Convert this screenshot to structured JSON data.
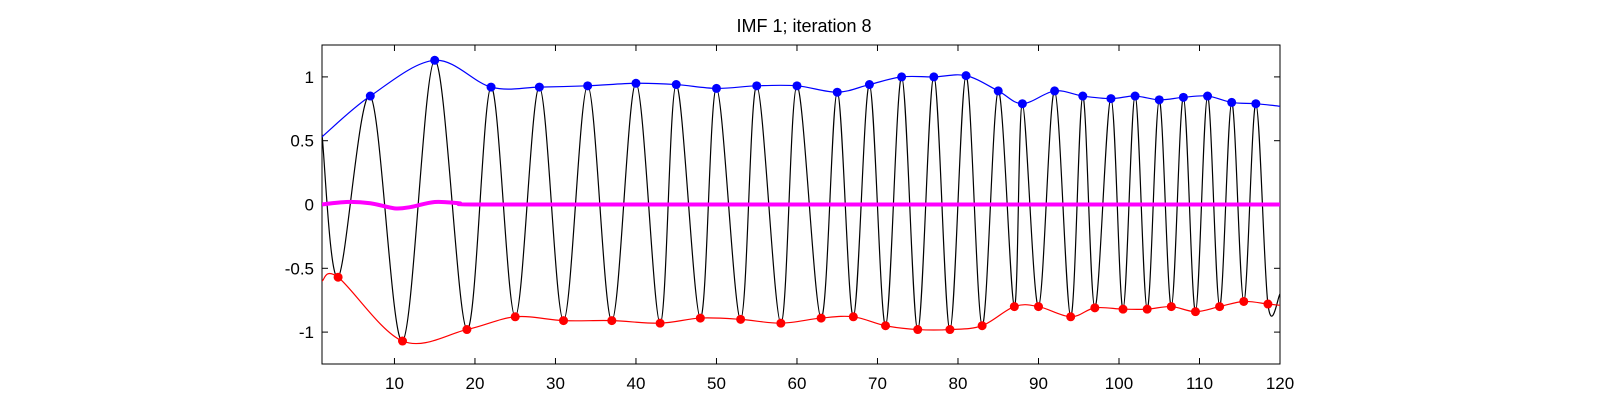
{
  "chart_data": {
    "type": "line",
    "title": "IMF 1;   iteration 8",
    "xlabel": "",
    "ylabel": "",
    "xlim": [
      1,
      120
    ],
    "ylim": [
      -1.25,
      1.25
    ],
    "xticks": [
      10,
      20,
      30,
      40,
      50,
      60,
      70,
      80,
      90,
      100,
      110,
      120
    ],
    "yticks": [
      1,
      0.5,
      0,
      -0.5,
      -1
    ],
    "ytick_labels": [
      "1",
      "0.5",
      "0",
      "-0.5",
      "-1"
    ],
    "grid": false,
    "series": [
      {
        "role": "signal",
        "color": "#000000",
        "x": [
          1,
          3,
          7,
          11,
          15,
          19,
          22,
          25,
          28,
          31,
          34,
          37,
          40,
          43,
          45,
          48,
          50,
          53,
          55,
          58,
          60,
          63,
          65,
          67,
          69,
          71,
          73,
          75,
          77,
          79,
          81,
          83,
          85,
          87,
          88,
          90,
          92,
          94,
          95.5,
          97,
          99,
          100.5,
          102,
          103.5,
          105,
          106.5,
          108,
          109.5,
          111,
          112.5,
          114,
          115.5,
          117,
          118.5,
          120
        ],
        "y": [
          0.55,
          -0.57,
          0.85,
          -1.07,
          1.13,
          -0.98,
          0.92,
          -0.88,
          0.92,
          -0.91,
          0.93,
          -0.91,
          0.95,
          -0.93,
          0.94,
          -0.89,
          0.91,
          -0.9,
          0.93,
          -0.93,
          0.93,
          -0.89,
          0.88,
          -0.88,
          0.94,
          -0.95,
          1.0,
          -0.98,
          1.0,
          -0.98,
          1.01,
          -0.95,
          0.89,
          -0.8,
          0.79,
          -0.8,
          0.89,
          -0.88,
          0.85,
          -0.81,
          0.83,
          -0.82,
          0.85,
          -0.82,
          0.82,
          -0.8,
          0.84,
          -0.84,
          0.85,
          -0.8,
          0.8,
          -0.76,
          0.79,
          -0.78,
          -0.7
        ]
      },
      {
        "role": "upper envelope",
        "color": "#0000ff",
        "x": [
          1,
          7,
          15,
          22,
          28,
          34,
          40,
          45,
          50,
          55,
          60,
          65,
          69,
          73,
          77,
          81,
          85,
          88,
          92,
          95.5,
          99,
          102,
          105,
          108,
          111,
          114,
          117,
          120
        ],
        "y": [
          0.53,
          0.85,
          1.13,
          0.92,
          0.92,
          0.93,
          0.95,
          0.94,
          0.91,
          0.93,
          0.93,
          0.88,
          0.94,
          1.0,
          1.0,
          1.01,
          0.89,
          0.79,
          0.89,
          0.85,
          0.83,
          0.85,
          0.82,
          0.84,
          0.85,
          0.8,
          0.79,
          0.77
        ]
      },
      {
        "role": "lower envelope",
        "color": "#ff0000",
        "x": [
          1,
          3,
          11,
          19,
          25,
          31,
          37,
          43,
          48,
          53,
          58,
          63,
          67,
          71,
          75,
          79,
          83,
          87,
          90,
          94,
          97,
          100.5,
          103.5,
          106.5,
          109.5,
          112.5,
          115.5,
          118.5,
          120
        ],
        "y": [
          -0.6,
          -0.57,
          -1.07,
          -0.98,
          -0.88,
          -0.91,
          -0.91,
          -0.93,
          -0.89,
          -0.9,
          -0.93,
          -0.89,
          -0.88,
          -0.95,
          -0.98,
          -0.98,
          -0.95,
          -0.8,
          -0.8,
          -0.88,
          -0.81,
          -0.82,
          -0.82,
          -0.8,
          -0.84,
          -0.8,
          -0.76,
          -0.78,
          -0.79
        ]
      },
      {
        "role": "envelope mean",
        "color": "#ff00ff",
        "x": [
          1,
          4,
          7,
          10,
          12,
          15,
          18,
          20,
          40,
          60,
          80,
          100,
          120
        ],
        "y": [
          0.0,
          0.02,
          0.01,
          -0.03,
          -0.02,
          0.02,
          0.01,
          0.0,
          0.0,
          0.0,
          0.0,
          0.0,
          0.0
        ]
      }
    ]
  }
}
